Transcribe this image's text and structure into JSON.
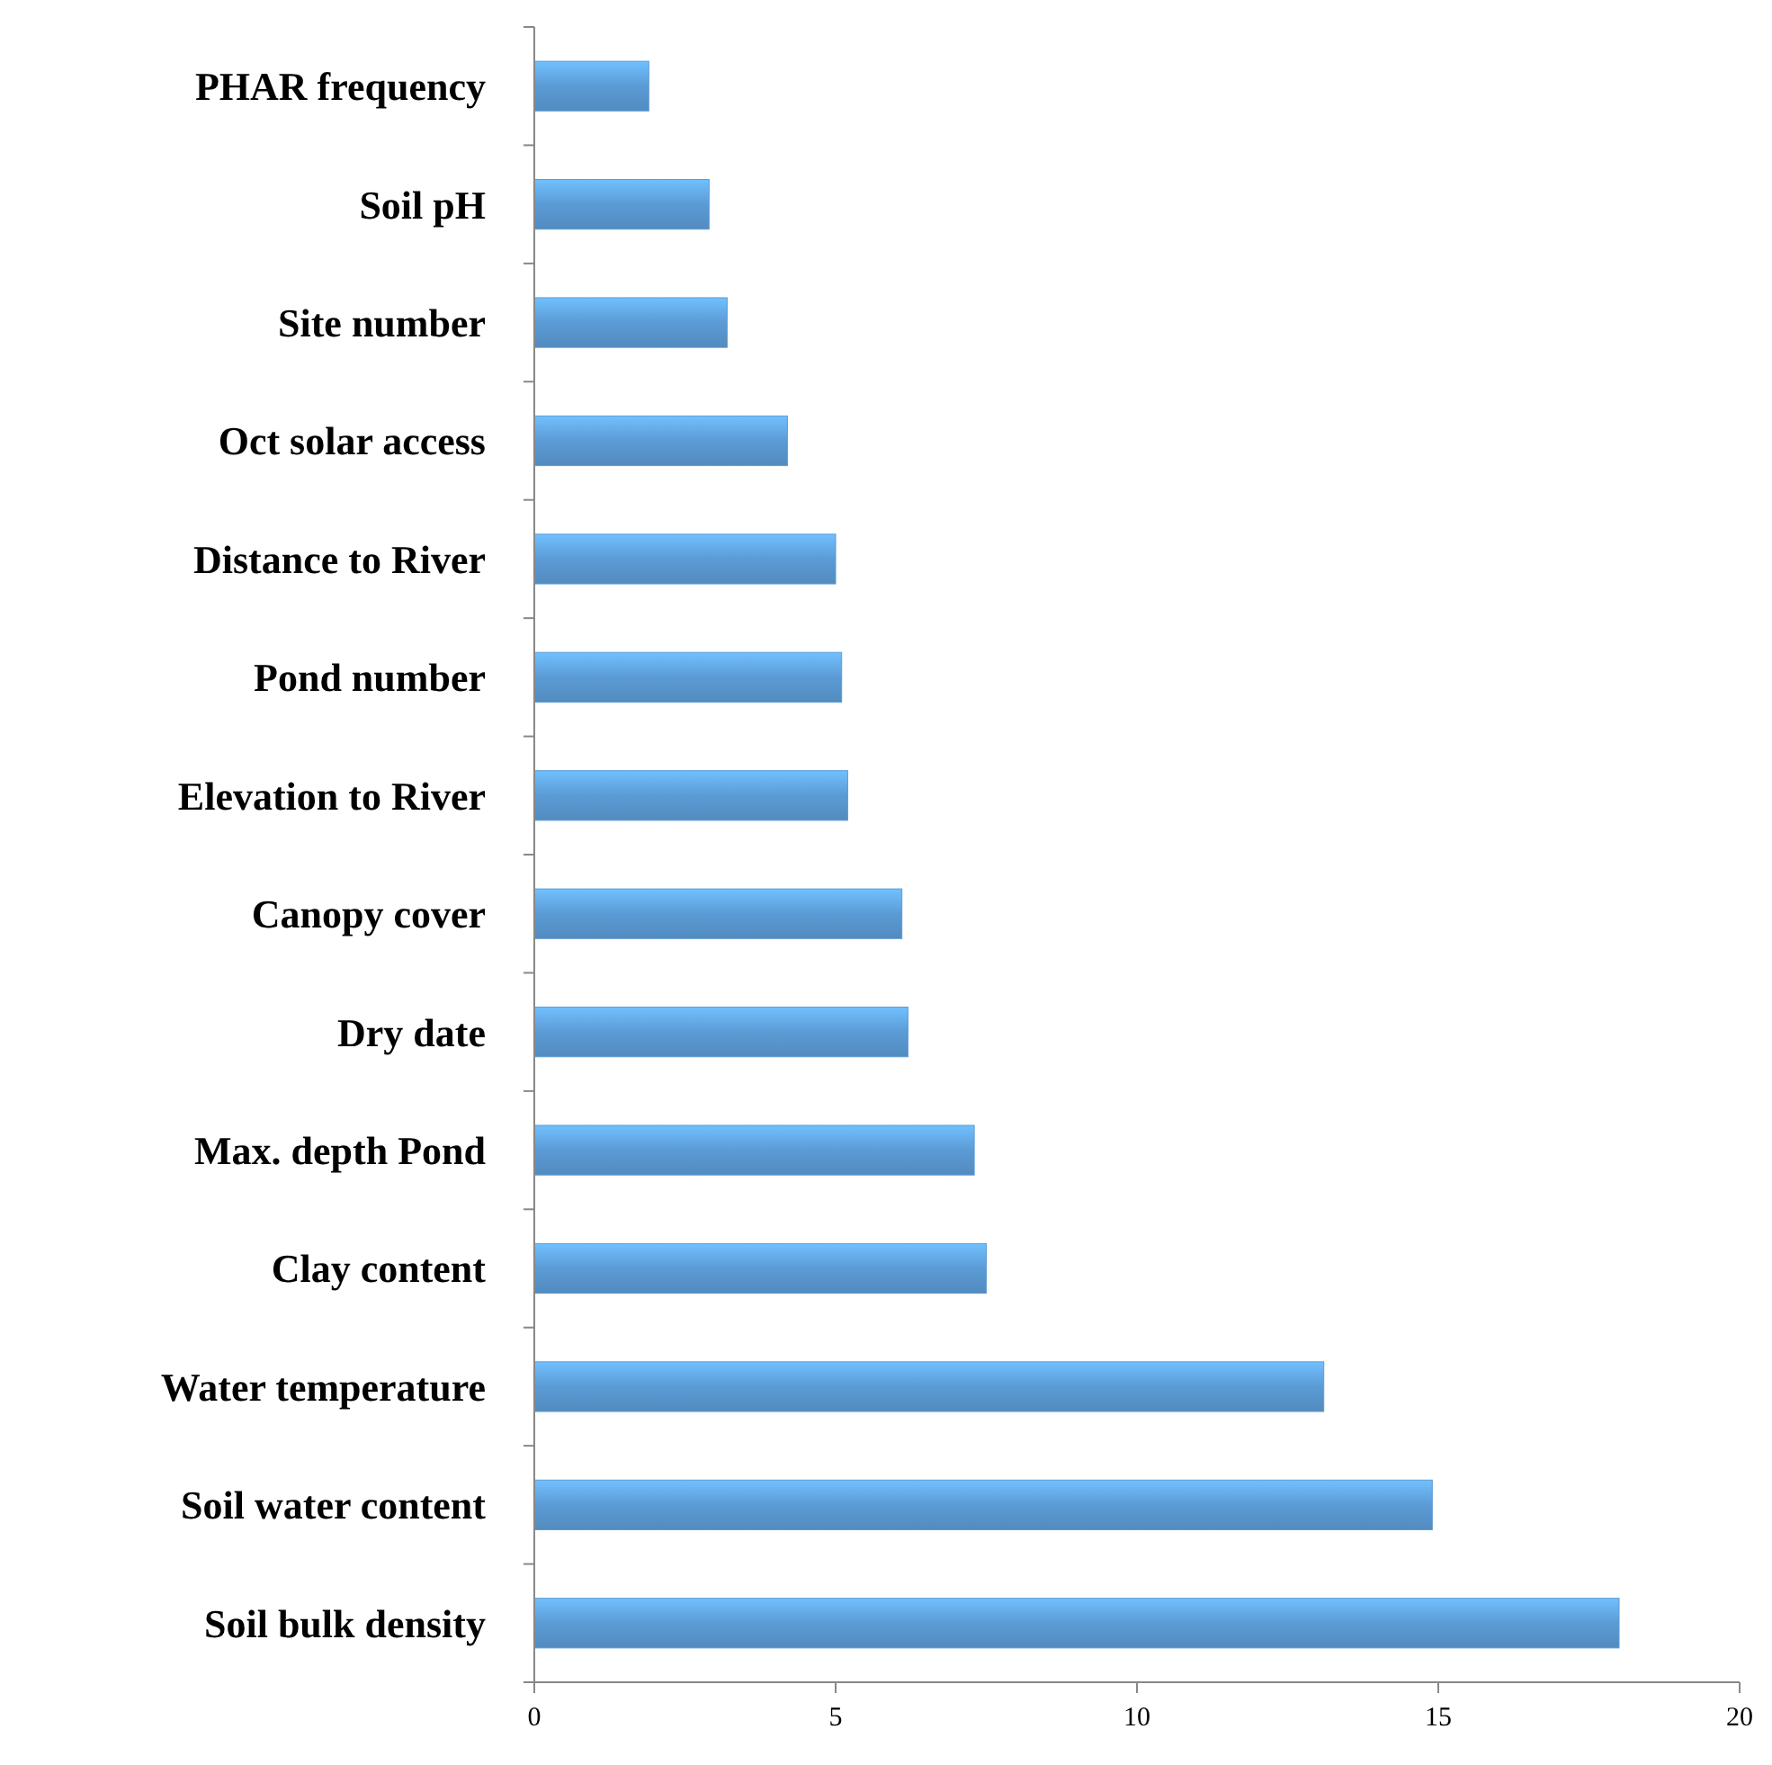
{
  "chart_data": {
    "type": "bar",
    "orientation": "horizontal",
    "categories": [
      "PHAR frequency",
      "Soil pH",
      "Site number",
      "Oct solar access",
      "Distance to River",
      "Pond number",
      "Elevation to River",
      "Canopy cover",
      "Dry date",
      "Max. depth Pond",
      "Clay content",
      "Water temperature",
      "Soil water content",
      "Soil bulk density"
    ],
    "values": [
      1.9,
      2.9,
      3.2,
      4.2,
      5.0,
      5.1,
      5.2,
      6.1,
      6.2,
      7.3,
      7.5,
      13.1,
      14.9,
      18.0
    ],
    "color": "#5b9bd5",
    "xlim": [
      0,
      20
    ],
    "xticks": [
      0,
      5,
      10,
      15,
      20
    ],
    "grid": false
  }
}
